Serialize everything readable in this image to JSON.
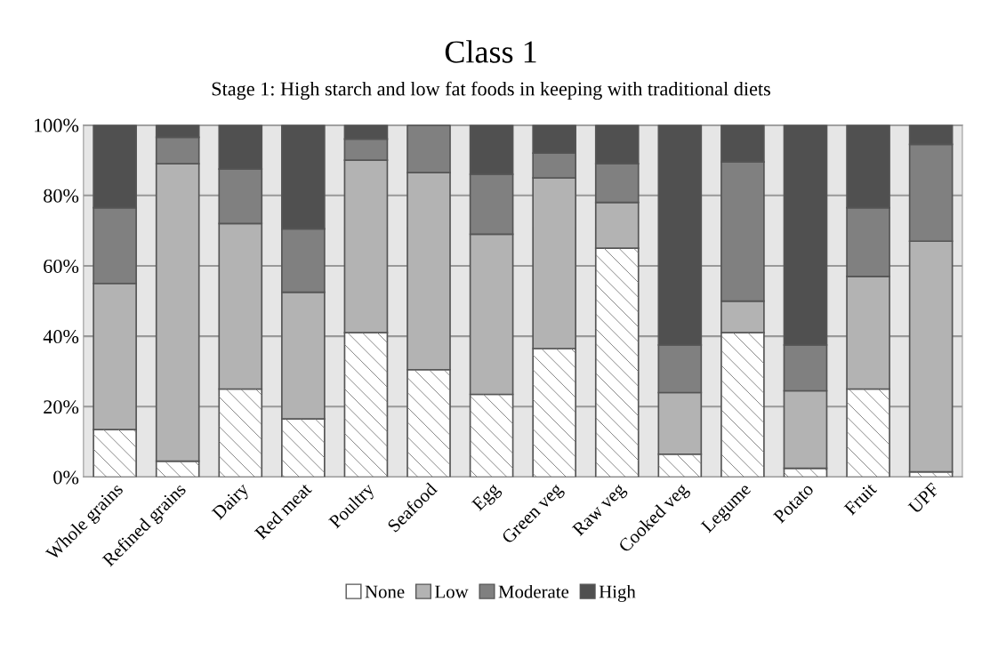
{
  "chart_data": {
    "type": "bar",
    "stacked": true,
    "title": "Class 1",
    "subtitle": "Stage 1: High starch and low fat foods in keeping with traditional diets",
    "categories": [
      "Whole grains",
      "Refined grains",
      "Dairy",
      "Red meat",
      "Poultry",
      "Seafood",
      "Egg",
      "Green veg",
      "Raw veg",
      "Cooked veg",
      "Legume",
      "Potato",
      "Fruit",
      "UPF"
    ],
    "series": [
      {
        "name": "None",
        "color": "#ffffff",
        "values": [
          13.5,
          4.5,
          25,
          16.5,
          41,
          30.5,
          23.5,
          36.5,
          65,
          6.5,
          41,
          2.5,
          25,
          1.5
        ]
      },
      {
        "name": "Low",
        "color": "#b3b3b3",
        "values": [
          41.5,
          84.5,
          47,
          36,
          49,
          56,
          45.5,
          48.5,
          13,
          17.5,
          9,
          22,
          32,
          65.5
        ]
      },
      {
        "name": "Moderate",
        "color": "#808080",
        "values": [
          21.5,
          7.5,
          15.5,
          18,
          6,
          13.5,
          17,
          7,
          11,
          13.5,
          39.5,
          13,
          19.5,
          27.5
        ]
      },
      {
        "name": "High",
        "color": "#505050",
        "values": [
          23.5,
          3.5,
          12.5,
          29.5,
          4,
          0,
          14,
          8,
          11,
          62.5,
          10.5,
          62.5,
          23.5,
          5.5
        ]
      }
    ],
    "ylim": [
      0,
      100
    ],
    "yticks": [
      {
        "value": 0,
        "label": "0%"
      },
      {
        "value": 20,
        "label": "20%"
      },
      {
        "value": 40,
        "label": "40%"
      },
      {
        "value": 60,
        "label": "60%"
      },
      {
        "value": 80,
        "label": "80%"
      },
      {
        "value": 100,
        "label": "100%"
      }
    ],
    "grid": "y",
    "legend": "bottom"
  }
}
